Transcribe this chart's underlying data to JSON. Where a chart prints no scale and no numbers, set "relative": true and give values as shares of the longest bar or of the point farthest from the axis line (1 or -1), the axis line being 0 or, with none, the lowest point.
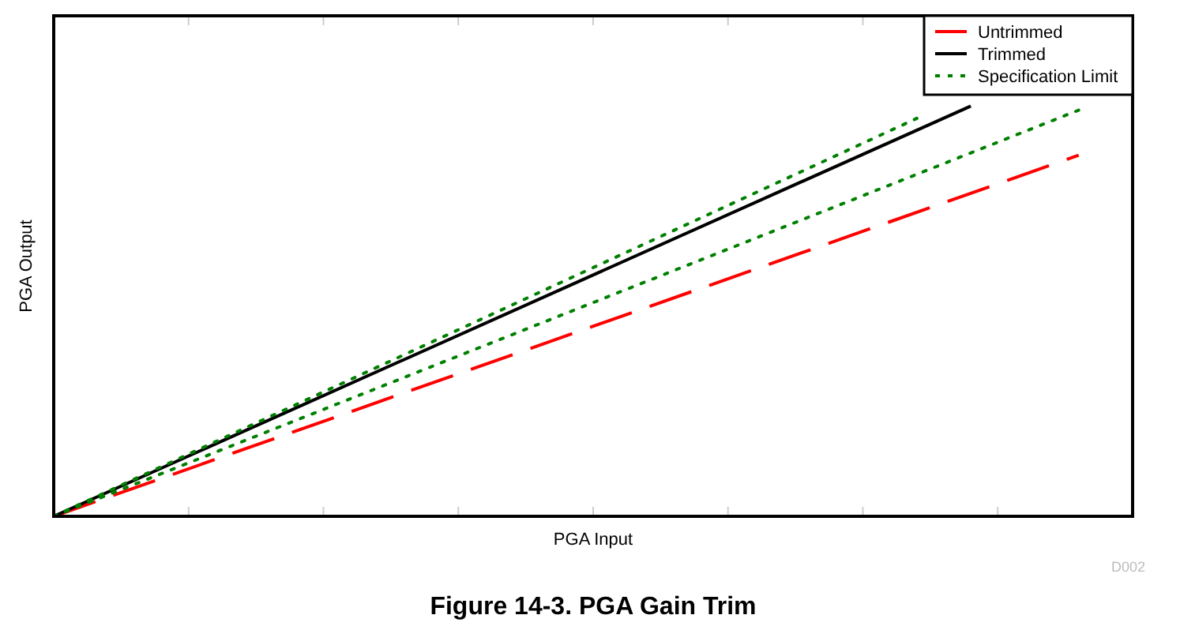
{
  "chart_data": {
    "type": "line",
    "title": "Figure 14-3. PGA Gain Trim",
    "xlabel": "PGA Input",
    "ylabel": "PGA Output",
    "annotations": [
      "D002"
    ],
    "relative": true,
    "legend": "top right",
    "categories": [
      null,
      null,
      null,
      null,
      null,
      null,
      null,
      null,
      null,
      null,
      null,
      null,
      null,
      null,
      null,
      null,
      null,
      null,
      null,
      null,
      null,
      null,
      null,
      null,
      null,
      null,
      null,
      null,
      null,
      null,
      null,
      null,
      null,
      null,
      null,
      null,
      null,
      null,
      null,
      null,
      null
    ],
    "series": [
      {
        "name": "Untrimmed",
        "color": "#ff0000",
        "line_style": "dashed",
        "values": [
          0,
          null,
          null,
          null,
          null,
          null,
          null,
          null,
          null,
          null,
          null,
          null,
          null,
          null,
          null,
          null,
          null,
          null,
          null,
          null,
          null,
          null,
          null,
          null,
          null,
          null,
          null,
          null,
          null,
          null,
          null,
          null,
          null,
          null,
          null,
          null,
          null,
          null,
          0.88,
          null,
          null
        ]
      },
      {
        "name": "Trimmed",
        "color": "#000000",
        "line_style": "solid",
        "values": [
          0,
          null,
          null,
          null,
          null,
          null,
          null,
          null,
          null,
          null,
          null,
          null,
          null,
          null,
          null,
          null,
          null,
          null,
          null,
          null,
          null,
          null,
          null,
          null,
          null,
          null,
          null,
          null,
          null,
          null,
          null,
          null,
          null,
          null,
          1,
          null,
          null,
          null,
          null,
          null,
          null
        ]
      },
      {
        "name": "Specification Limit",
        "color": "#008000",
        "line_style": "dotted",
        "values": [
          0,
          null,
          null,
          null,
          null,
          null,
          null,
          null,
          null,
          null,
          null,
          null,
          null,
          null,
          null,
          null,
          null,
          null,
          null,
          null,
          null,
          null,
          null,
          null,
          null,
          null,
          null,
          null,
          null,
          null,
          null,
          null,
          0.97,
          null,
          null,
          null,
          null,
          null,
          null,
          null,
          null
        ]
      },
      {
        "color": "#008000",
        "line_style": "dotted",
        "values": [
          0,
          null,
          null,
          null,
          null,
          null,
          null,
          null,
          null,
          null,
          null,
          null,
          null,
          null,
          null,
          null,
          null,
          null,
          null,
          null,
          null,
          null,
          null,
          null,
          null,
          null,
          null,
          null,
          null,
          null,
          null,
          null,
          null,
          null,
          null,
          null,
          null,
          null,
          0.99,
          null,
          null
        ]
      }
    ]
  }
}
